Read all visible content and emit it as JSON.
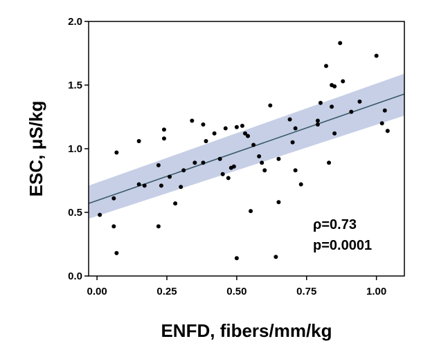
{
  "chart_data": {
    "type": "scatter",
    "xlabel": "ENFD, fibers/mm/kg",
    "ylabel": "ESC, μS/kg",
    "xlim": [
      -0.03,
      1.1
    ],
    "ylim": [
      0.0,
      2.0
    ],
    "x_ticks": [
      0.0,
      0.25,
      0.5,
      0.75,
      1.0
    ],
    "x_tick_labels": [
      "0.00",
      "0.25",
      "0.50",
      "0.75",
      "1.00"
    ],
    "y_ticks": [
      0.0,
      0.5,
      1.0,
      1.5,
      2.0
    ],
    "y_tick_labels": [
      "0.0",
      "0.5",
      "1.0",
      "1.5",
      "2.0"
    ],
    "grid": false,
    "points": [
      {
        "x": 0.01,
        "y": 0.48
      },
      {
        "x": 0.06,
        "y": 0.61
      },
      {
        "x": 0.06,
        "y": 0.39
      },
      {
        "x": 0.07,
        "y": 0.97
      },
      {
        "x": 0.07,
        "y": 0.18
      },
      {
        "x": 0.15,
        "y": 1.06
      },
      {
        "x": 0.15,
        "y": 0.72
      },
      {
        "x": 0.17,
        "y": 0.71
      },
      {
        "x": 0.22,
        "y": 0.87
      },
      {
        "x": 0.22,
        "y": 0.39
      },
      {
        "x": 0.23,
        "y": 0.71
      },
      {
        "x": 0.24,
        "y": 1.08
      },
      {
        "x": 0.24,
        "y": 1.15
      },
      {
        "x": 0.26,
        "y": 0.78
      },
      {
        "x": 0.28,
        "y": 0.57
      },
      {
        "x": 0.3,
        "y": 0.7
      },
      {
        "x": 0.31,
        "y": 0.83
      },
      {
        "x": 0.34,
        "y": 1.22
      },
      {
        "x": 0.35,
        "y": 0.89
      },
      {
        "x": 0.38,
        "y": 1.19
      },
      {
        "x": 0.38,
        "y": 0.89
      },
      {
        "x": 0.39,
        "y": 1.06
      },
      {
        "x": 0.42,
        "y": 1.12
      },
      {
        "x": 0.44,
        "y": 0.92
      },
      {
        "x": 0.45,
        "y": 0.8
      },
      {
        "x": 0.46,
        "y": 1.16
      },
      {
        "x": 0.47,
        "y": 0.77
      },
      {
        "x": 0.48,
        "y": 0.85
      },
      {
        "x": 0.49,
        "y": 0.86
      },
      {
        "x": 0.5,
        "y": 1.17
      },
      {
        "x": 0.5,
        "y": 0.14
      },
      {
        "x": 0.52,
        "y": 1.18
      },
      {
        "x": 0.53,
        "y": 1.12
      },
      {
        "x": 0.54,
        "y": 1.1
      },
      {
        "x": 0.55,
        "y": 0.51
      },
      {
        "x": 0.56,
        "y": 1.03
      },
      {
        "x": 0.58,
        "y": 0.94
      },
      {
        "x": 0.59,
        "y": 0.89
      },
      {
        "x": 0.6,
        "y": 0.83
      },
      {
        "x": 0.62,
        "y": 1.34
      },
      {
        "x": 0.64,
        "y": 0.15
      },
      {
        "x": 0.65,
        "y": 0.92
      },
      {
        "x": 0.65,
        "y": 0.58
      },
      {
        "x": 0.69,
        "y": 1.23
      },
      {
        "x": 0.7,
        "y": 1.05
      },
      {
        "x": 0.71,
        "y": 1.16
      },
      {
        "x": 0.71,
        "y": 0.83
      },
      {
        "x": 0.73,
        "y": 0.72
      },
      {
        "x": 0.79,
        "y": 1.22
      },
      {
        "x": 0.79,
        "y": 1.19
      },
      {
        "x": 0.8,
        "y": 1.36
      },
      {
        "x": 0.82,
        "y": 1.65
      },
      {
        "x": 0.83,
        "y": 0.89
      },
      {
        "x": 0.84,
        "y": 1.33
      },
      {
        "x": 0.84,
        "y": 1.5
      },
      {
        "x": 0.85,
        "y": 1.49
      },
      {
        "x": 0.85,
        "y": 1.12
      },
      {
        "x": 0.87,
        "y": 1.83
      },
      {
        "x": 0.88,
        "y": 1.53
      },
      {
        "x": 0.91,
        "y": 1.29
      },
      {
        "x": 0.94,
        "y": 1.37
      },
      {
        "x": 1.0,
        "y": 1.73
      },
      {
        "x": 1.02,
        "y": 1.2
      },
      {
        "x": 1.03,
        "y": 1.3
      },
      {
        "x": 1.04,
        "y": 1.14
      }
    ],
    "fit": {
      "x": [
        -0.03,
        1.1
      ],
      "y": [
        0.57,
        1.43
      ],
      "ci_lower": [
        0.45,
        1.26
      ],
      "ci_upper": [
        0.71,
        1.59
      ],
      "x_min": 0.0,
      "y_center_at_min": 0.58
    },
    "annotations": [
      "ρ=0.73",
      "p=0.0001"
    ],
    "colors": {
      "points": "#000000",
      "fit_line": "#3a5a6a",
      "ci_band": "#c6cfe6"
    }
  }
}
